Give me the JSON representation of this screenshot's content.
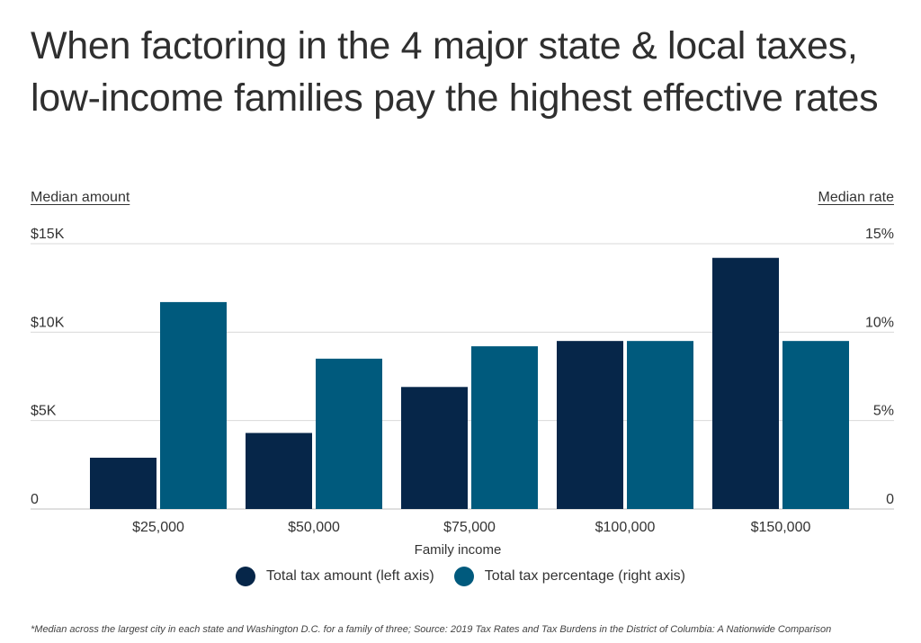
{
  "title": "When factoring in the 4 major state & local taxes, low-income families pay the highest effective rates",
  "left_axis_title": "Median amount",
  "right_axis_title": "Median rate",
  "footnote": "*Median across the largest city in each state and Washington D.C. for a family of three; Source:  2019 Tax Rates and Tax Burdens in the District of Columbia: A Nationwide Comparison",
  "colors": {
    "amount": "#062649",
    "percentage": "#005a7d",
    "grid": "#d9d9d9"
  },
  "chart_data": {
    "type": "bar",
    "xlabel": "Family income",
    "categories": [
      "$25,000",
      "$50,000",
      "$75,000",
      "$100,000",
      "$150,000"
    ],
    "series": [
      {
        "name": "Total tax amount (left axis)",
        "axis": "left",
        "values": [
          2900,
          4300,
          6900,
          9500,
          14200
        ]
      },
      {
        "name": "Total tax percentage (right axis)",
        "axis": "right",
        "values": [
          11.7,
          8.5,
          9.2,
          9.5,
          9.5
        ]
      }
    ],
    "left_axis": {
      "ylim": [
        0,
        15000
      ],
      "ticks": [
        0,
        5000,
        10000,
        15000
      ],
      "tick_labels": [
        "0",
        "$5K",
        "$10K",
        "$15K"
      ]
    },
    "right_axis": {
      "ylim": [
        0,
        15
      ],
      "ticks": [
        0,
        5,
        10,
        15
      ],
      "tick_labels": [
        "0",
        "5%",
        "10%",
        "15%"
      ]
    },
    "grid": true,
    "legend_position": "bottom"
  }
}
